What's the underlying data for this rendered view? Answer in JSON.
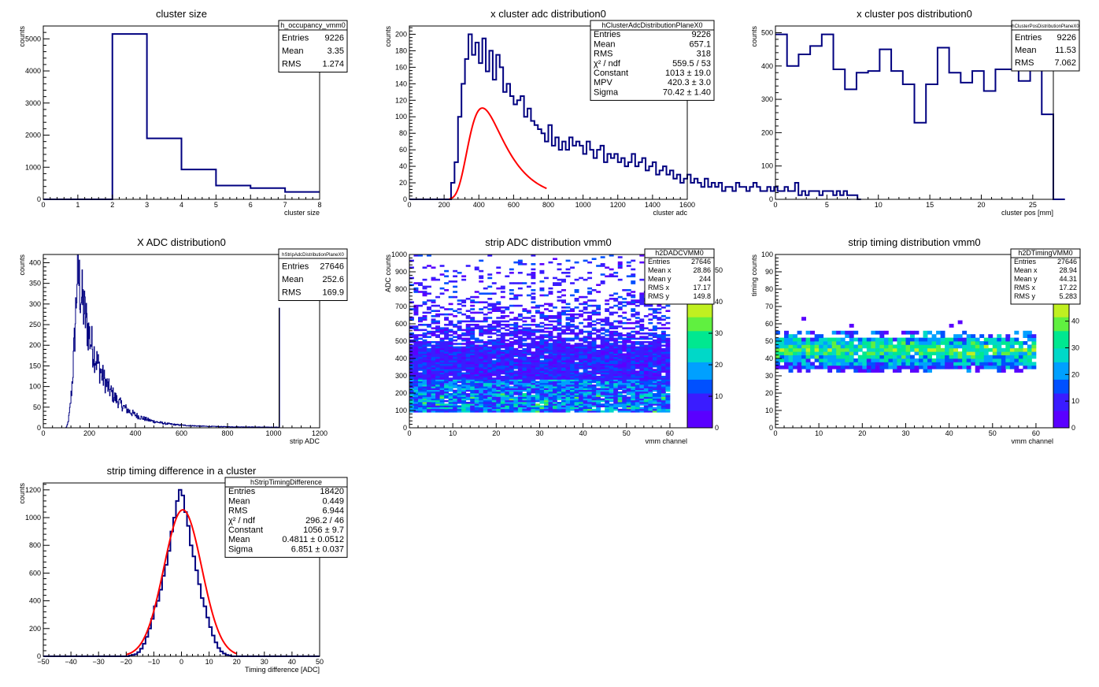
{
  "chart_data": [
    {
      "id": "cluster_size",
      "type": "bar",
      "title": "cluster size",
      "xlabel": "cluster size",
      "ylabel": "counts",
      "xlim": [
        0,
        8
      ],
      "ylim": [
        0,
        5400
      ],
      "xticks": [
        0,
        1,
        2,
        3,
        4,
        5,
        6,
        7,
        8
      ],
      "yticks": [
        0,
        1000,
        2000,
        3000,
        4000,
        5000
      ],
      "histogram": {
        "edges": [
          0,
          1,
          2,
          3,
          4,
          5,
          6,
          7,
          8
        ],
        "values": [
          0,
          0,
          5150,
          1900,
          930,
          430,
          350,
          230
        ]
      },
      "stats": {
        "name": "h_occupancy_vmm0",
        "rows": [
          [
            "Entries",
            "9226"
          ],
          [
            "Mean",
            "3.35"
          ],
          [
            "RMS",
            "1.274"
          ]
        ]
      }
    },
    {
      "id": "x_cluster_adc",
      "type": "bar",
      "title": "x cluster adc distribution0",
      "xlabel": "cluster adc",
      "ylabel": "counts",
      "xlim": [
        0,
        1600
      ],
      "ylim": [
        0,
        210
      ],
      "xticks": [
        0,
        200,
        400,
        600,
        800,
        1000,
        1200,
        1400,
        1600
      ],
      "yticks": [
        0,
        20,
        40,
        60,
        80,
        100,
        120,
        140,
        160,
        180,
        200
      ],
      "histogram": {
        "edges_start": 0,
        "bin_width": 20,
        "values": [
          0,
          0,
          0,
          0,
          0,
          0,
          0,
          0,
          0,
          0,
          0,
          0,
          20,
          45,
          100,
          140,
          170,
          200,
          175,
          190,
          165,
          195,
          155,
          180,
          145,
          175,
          160,
          130,
          140,
          125,
          115,
          120,
          125,
          100,
          110,
          95,
          90,
          85,
          80,
          70,
          90,
          65,
          75,
          60,
          70,
          60,
          75,
          65,
          70,
          65,
          55,
          70,
          60,
          50,
          60,
          65,
          45,
          55,
          50,
          55,
          45,
          50,
          40,
          45,
          55,
          40,
          45,
          50,
          35,
          40,
          45,
          30,
          35,
          40,
          30,
          35,
          25,
          30,
          20,
          25,
          30,
          20,
          25,
          20,
          15,
          25,
          15,
          20,
          15,
          20,
          10,
          15,
          15,
          10,
          20,
          15,
          15,
          10,
          15,
          20,
          15,
          10,
          10,
          15,
          10,
          15,
          10,
          10,
          15,
          10,
          10,
          20,
          5,
          10,
          5,
          10,
          10,
          10,
          5,
          10,
          10,
          10,
          5,
          10,
          5,
          10,
          5,
          5,
          5,
          0
        ]
      },
      "fit": {
        "function": "landau",
        "constant": 1013.0,
        "mpv": 420.3,
        "sigma": 70.42,
        "range": [
          230,
          790
        ]
      },
      "stats": {
        "name": "hClusterAdcDistributionPlaneX0",
        "rows": [
          [
            "Entries",
            "9226"
          ],
          [
            "Mean",
            "657.1"
          ],
          [
            "RMS",
            "318"
          ],
          [
            "χ² / ndf",
            "559.5 / 53"
          ],
          [
            "Constant",
            "1013 ± 19.0"
          ],
          [
            "MPV",
            "420.3 ± 3.0"
          ],
          [
            "Sigma",
            "70.42 ± 1.40"
          ]
        ]
      }
    },
    {
      "id": "x_cluster_pos",
      "type": "bar",
      "title": "x cluster pos distribution0",
      "xlabel": "cluster pos [mm]",
      "ylabel": "counts",
      "xlim": [
        0,
        27
      ],
      "ylim": [
        0,
        520
      ],
      "xticks": [
        0,
        5,
        10,
        15,
        20,
        25
      ],
      "yticks": [
        0,
        100,
        200,
        300,
        400,
        500
      ],
      "histogram": {
        "edges_start": 0,
        "bin_width": 1.125,
        "values": [
          495,
          400,
          435,
          460,
          495,
          390,
          330,
          380,
          385,
          450,
          385,
          345,
          230,
          345,
          455,
          380,
          350,
          385,
          325,
          390,
          390,
          355,
          490,
          255,
          0
        ]
      },
      "stats": {
        "name": "hClusterPosDistributionPlaneX0",
        "rows": [
          [
            "Entries",
            "9226"
          ],
          [
            "Mean",
            "11.53"
          ],
          [
            "RMS",
            "7.062"
          ]
        ]
      }
    },
    {
      "id": "x_adc",
      "type": "bar",
      "title": "X ADC distribution0",
      "xlabel": "strip ADC",
      "ylabel": "counts",
      "xlim": [
        0,
        1200
      ],
      "ylim": [
        0,
        420
      ],
      "xticks": [
        0,
        200,
        400,
        600,
        800,
        1000,
        1200
      ],
      "yticks": [
        0,
        50,
        100,
        150,
        200,
        250,
        300,
        350,
        400
      ],
      "histogram": {
        "shape": "peaked",
        "peak_x": 148,
        "peak_y": 405,
        "start_x": 95,
        "end_x": 1022,
        "spike_x": 1024,
        "spike_y": 290
      },
      "stats": {
        "name": "hStripAdcDistributionPlaneX0",
        "rows": [
          [
            "Entries",
            "27646"
          ],
          [
            "Mean",
            "252.6"
          ],
          [
            "RMS",
            "169.9"
          ]
        ]
      }
    },
    {
      "id": "strip_adc_2d",
      "type": "heatmap",
      "title": "strip ADC distribution vmm0",
      "xlabel": "vmm channel",
      "ylabel": "ADC counts",
      "xlim": [
        0,
        64
      ],
      "ylim": [
        0,
        1000
      ],
      "xticks": [
        0,
        10,
        20,
        30,
        40,
        50,
        60
      ],
      "yticks": [
        0,
        100,
        200,
        300,
        400,
        500,
        600,
        700,
        800,
        900,
        1000
      ],
      "zticks": [
        0,
        10,
        20,
        30,
        40,
        50
      ],
      "zmax": 55,
      "occupied": {
        "x": [
          0,
          60
        ],
        "y": [
          90,
          1000
        ]
      },
      "stats": {
        "name": "h2DADCVMM0",
        "rows": [
          [
            "Entries",
            "27646"
          ],
          [
            "Mean x",
            "28.86"
          ],
          [
            "Mean y",
            "244"
          ],
          [
            "RMS x",
            "17.17"
          ],
          [
            "RMS y",
            "149.8"
          ]
        ]
      }
    },
    {
      "id": "strip_timing_2d",
      "type": "heatmap",
      "title": "strip timing distribution vmm0",
      "xlabel": "vmm channel",
      "ylabel": "timing counts",
      "xlim": [
        0,
        64
      ],
      "ylim": [
        0,
        100
      ],
      "xticks": [
        0,
        10,
        20,
        30,
        40,
        50,
        60
      ],
      "yticks": [
        0,
        10,
        20,
        30,
        40,
        50,
        60,
        70,
        80,
        90,
        100
      ],
      "zticks": [
        0,
        10,
        20,
        30,
        40,
        50,
        60
      ],
      "zmax": 65,
      "occupied": {
        "x": [
          0,
          60
        ],
        "y": [
          32,
          64
        ]
      },
      "stats": {
        "name": "h2DTimingVMM0",
        "rows": [
          [
            "Entries",
            "27646"
          ],
          [
            "Mean x",
            "28.94"
          ],
          [
            "Mean y",
            "44.31"
          ],
          [
            "RMS x",
            "17.22"
          ],
          [
            "RMS y",
            "5.283"
          ]
        ]
      }
    },
    {
      "id": "strip_timing_difference",
      "type": "bar",
      "title": "strip timing difference in a cluster",
      "xlabel": "Timing difference [ADC]",
      "ylabel": "counts",
      "xlim": [
        -50,
        50
      ],
      "ylim": [
        0,
        1250
      ],
      "xticks": [
        -50,
        -40,
        -30,
        -20,
        -10,
        0,
        10,
        20,
        30,
        40,
        50
      ],
      "yticks": [
        0,
        200,
        400,
        600,
        800,
        1000,
        1200
      ],
      "histogram": {
        "edges_start": -50,
        "bin_width": 1,
        "values": [
          0,
          0,
          0,
          0,
          0,
          0,
          0,
          0,
          0,
          0,
          0,
          0,
          0,
          0,
          0,
          0,
          0,
          0,
          0,
          0,
          0,
          0,
          0,
          0,
          0,
          0,
          0,
          0,
          0,
          0,
          0,
          5,
          10,
          15,
          30,
          55,
          90,
          140,
          200,
          270,
          360,
          400,
          480,
          580,
          660,
          760,
          900,
          1000,
          1120,
          1200,
          1160,
          1040,
          940,
          800,
          720,
          620,
          520,
          420,
          360,
          280,
          210,
          150,
          100,
          60,
          35,
          20,
          10,
          5,
          0,
          0,
          0,
          0,
          0,
          0,
          0,
          0,
          0,
          0,
          0,
          0,
          0,
          0,
          0,
          0,
          0,
          0,
          0,
          0,
          0,
          0,
          0,
          0,
          0,
          0,
          0,
          0,
          0,
          0,
          0,
          0
        ]
      },
      "fit": {
        "function": "gaus",
        "constant": 1056,
        "mean": 0.4811,
        "sigma": 6.851,
        "range": [
          -20,
          20
        ]
      },
      "stats": {
        "name": "hStripTimingDifference",
        "rows": [
          [
            "Entries",
            "18420"
          ],
          [
            "Mean",
            "0.449"
          ],
          [
            "RMS",
            "6.944"
          ],
          [
            "χ² / ndf",
            "296.2 / 46"
          ],
          [
            "Constant",
            "1056 ± 9.7"
          ],
          [
            "Mean",
            "0.4811 ± 0.0512"
          ],
          [
            "Sigma",
            "6.851 ± 0.037"
          ]
        ]
      }
    }
  ],
  "colors": {
    "hist_line": "#000080",
    "fit_line": "#ff0000",
    "palette": [
      "#5a00ff",
      "#3a1cff",
      "#0050ff",
      "#00a0ff",
      "#00d8c8",
      "#00e890",
      "#60f040",
      "#c0f020",
      "#ffd800",
      "#ff8000",
      "#ff2000"
    ]
  }
}
